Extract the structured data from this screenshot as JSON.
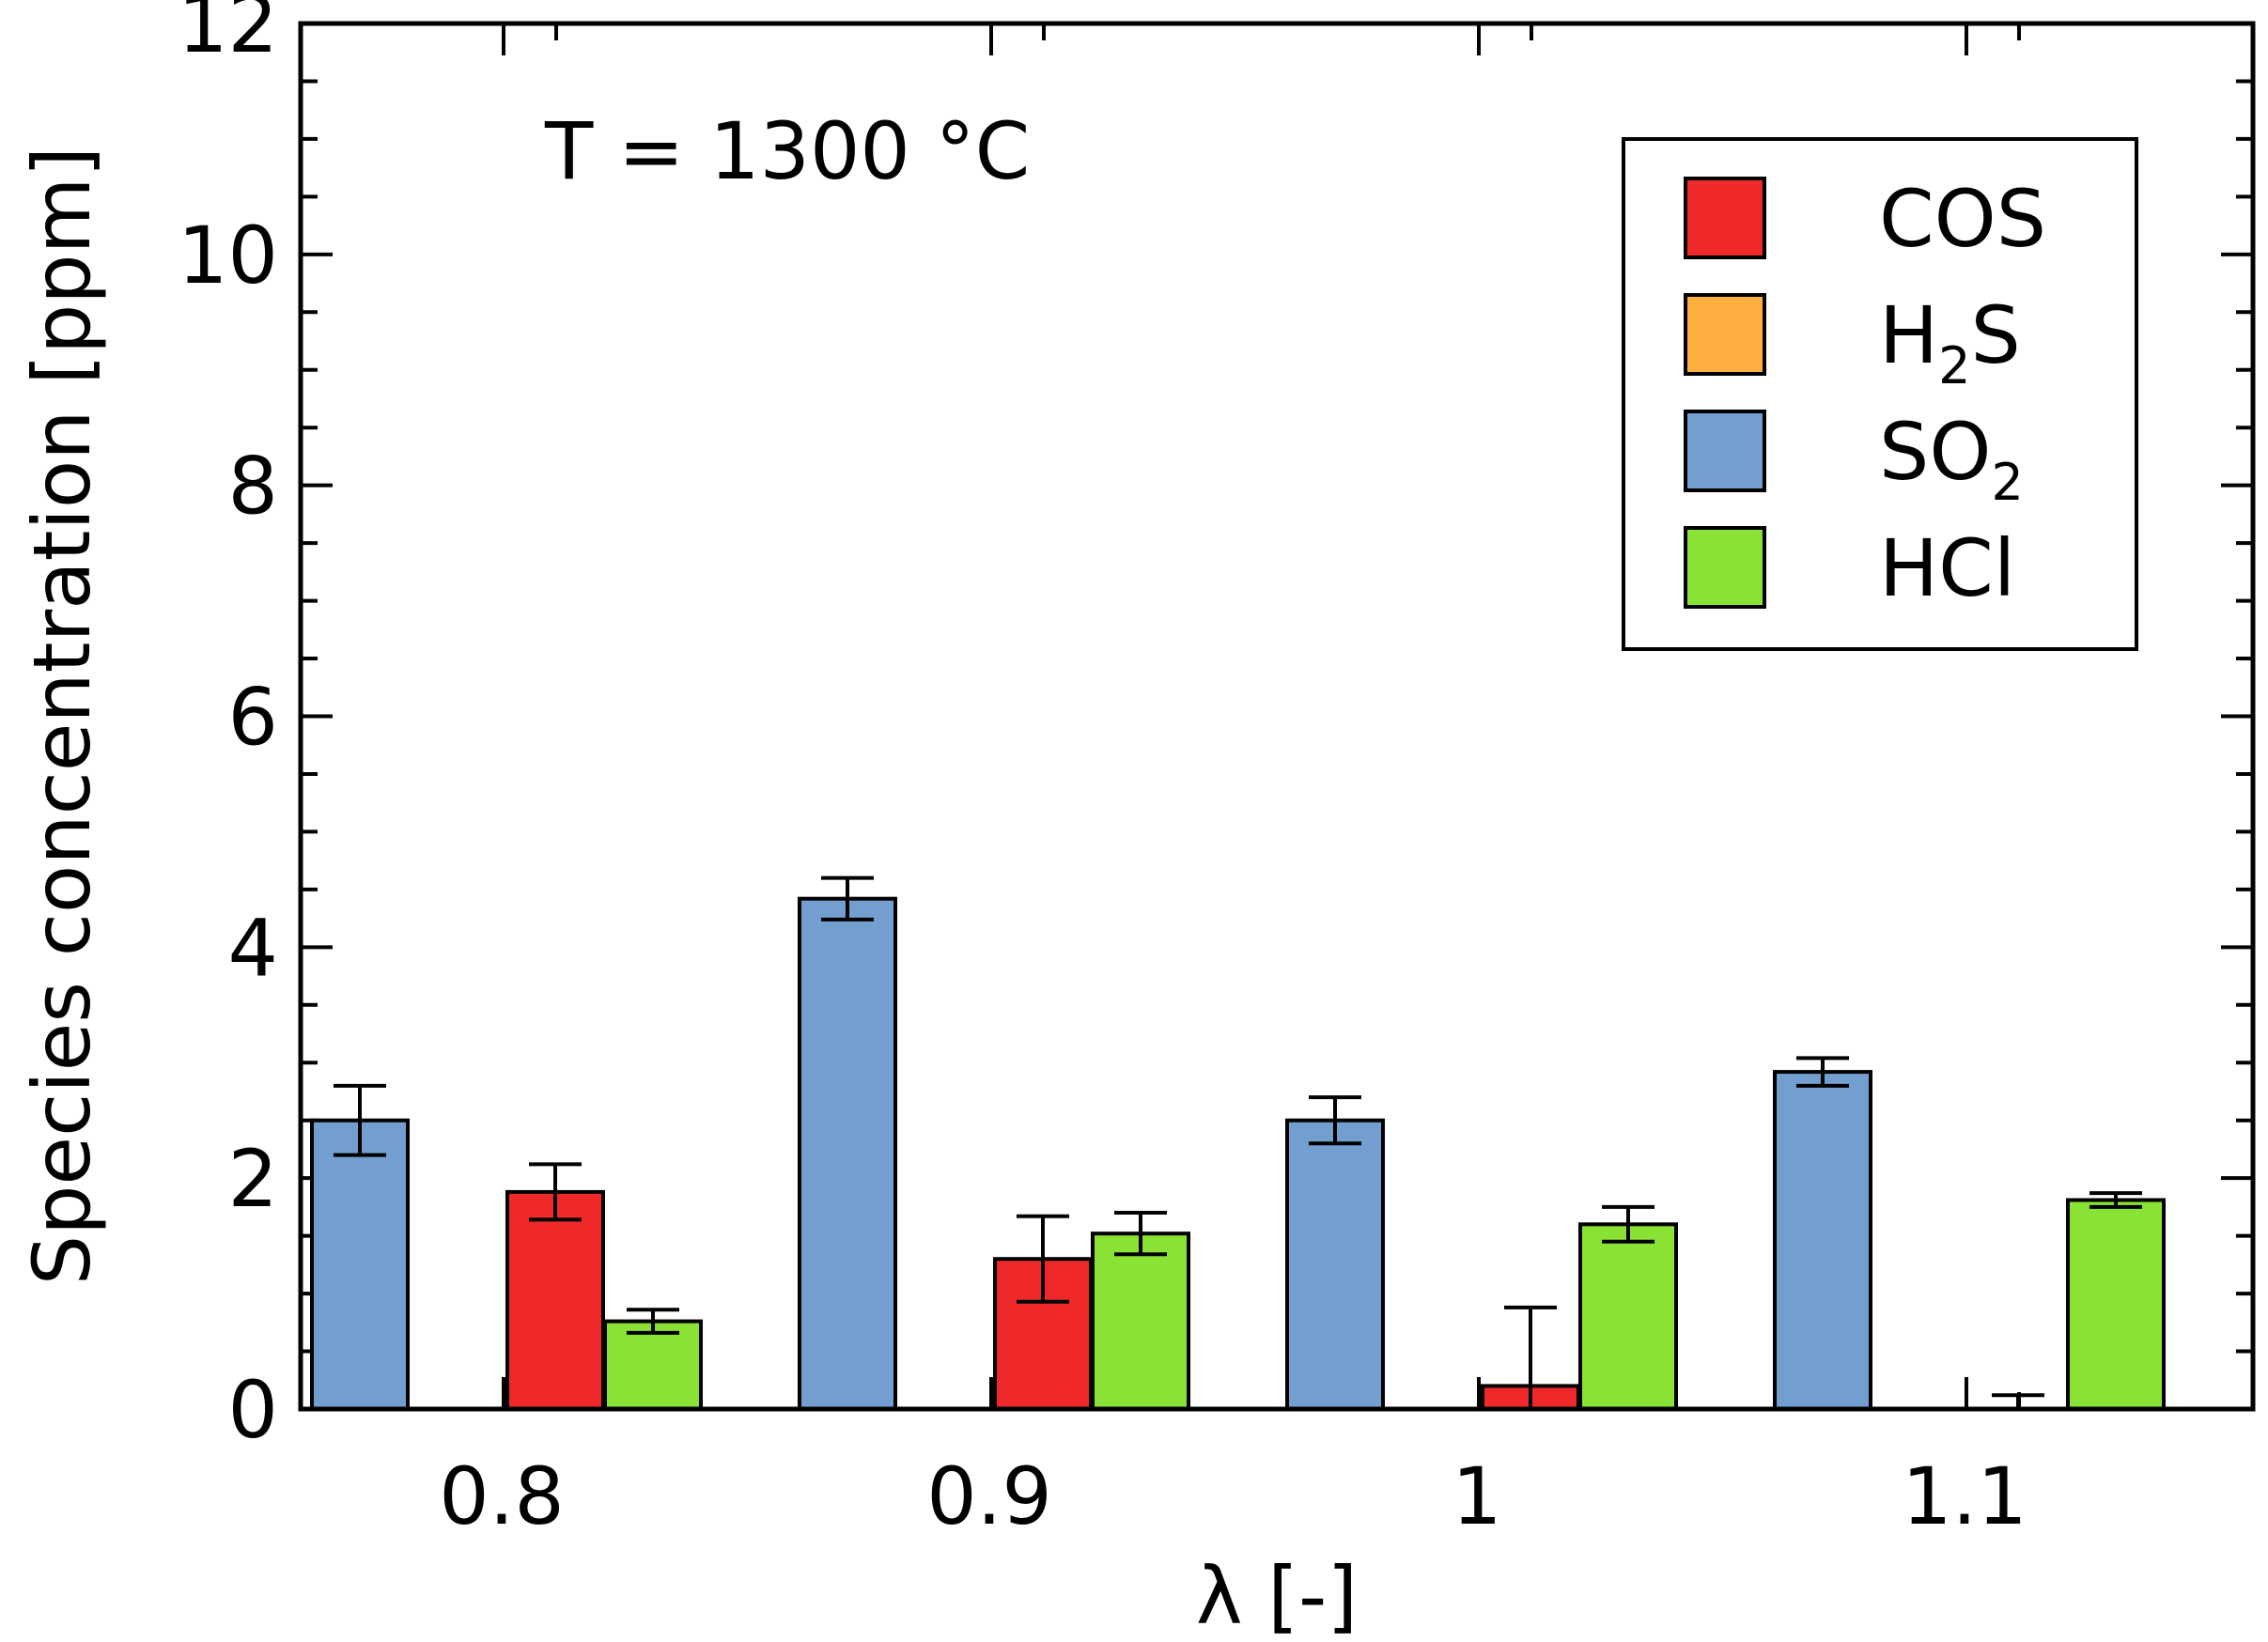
{
  "chart_data": {
    "type": "bar",
    "annotation": "T = 1300 °C",
    "xlabel": "λ [-]",
    "ylabel": "Species concentration [ppm]",
    "ylim": [
      0,
      12
    ],
    "yticks": [
      0,
      2,
      4,
      6,
      8,
      10,
      12
    ],
    "categories": [
      "0.8",
      "0.9",
      "1",
      "1.1"
    ],
    "legend_position": "top-right",
    "series": [
      {
        "name": "SO2",
        "label_main": "SO",
        "label_sub": "2",
        "color": "#729fcf",
        "values": [
          2.5,
          4.42,
          2.5,
          2.92
        ],
        "errors": [
          0.3,
          0.18,
          0.2,
          0.12
        ]
      },
      {
        "name": "H2S",
        "label_main": "H",
        "label_sub": "2",
        "label_tail": "S",
        "color": "#fcaf3e",
        "values": [
          0,
          0,
          0,
          0
        ],
        "errors": [
          0,
          0,
          0,
          0
        ]
      },
      {
        "name": "COS",
        "label_main": "COS",
        "color": "#ef2929",
        "values": [
          1.88,
          1.3,
          0.2,
          0
        ],
        "errors": [
          0.24,
          0.37,
          0.68,
          0.12
        ]
      },
      {
        "name": "HCl",
        "label_main": "HCl",
        "color": "#8ae234",
        "values": [
          0.76,
          1.52,
          1.6,
          1.81
        ],
        "errors": [
          0.1,
          0.18,
          0.15,
          0.06
        ]
      }
    ],
    "legend_order": [
      "COS",
      "H2S",
      "SO2",
      "HCl"
    ]
  }
}
